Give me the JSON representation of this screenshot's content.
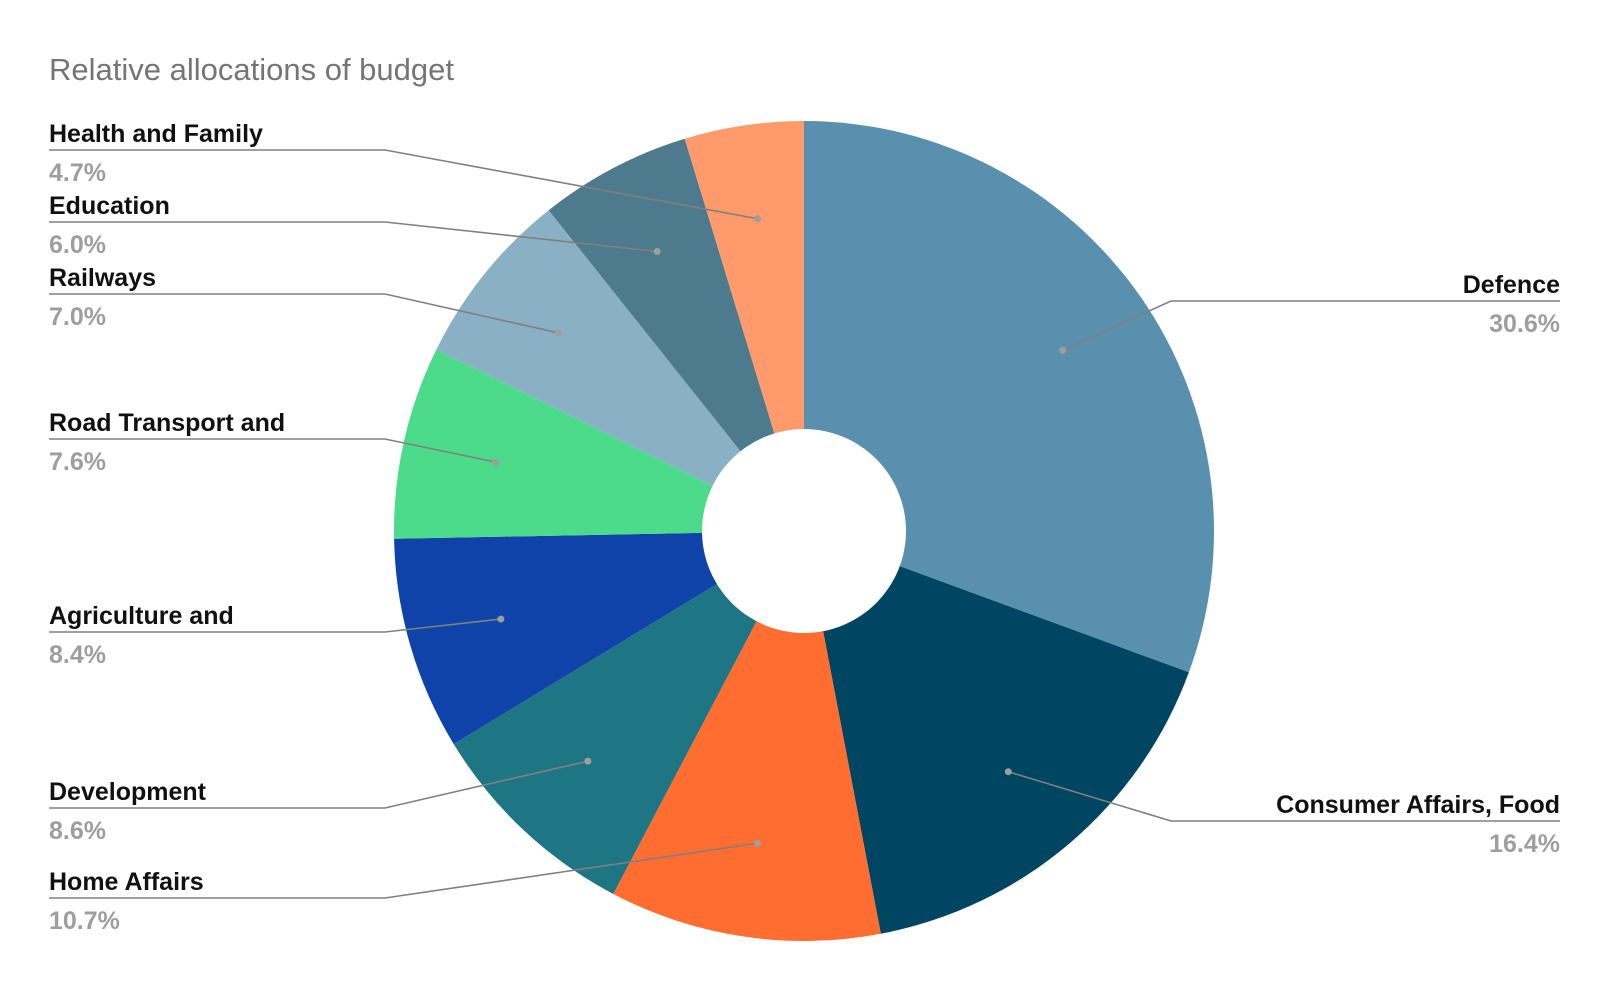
{
  "chart_data": {
    "type": "pie",
    "variant": "donut",
    "title": "Relative allocations of budget",
    "slices": [
      {
        "label": "Defence",
        "value": 30.6,
        "display": "30.6%",
        "color": "#5890ae"
      },
      {
        "label": "Consumer Affairs, Food",
        "value": 16.4,
        "display": "16.4%",
        "color": "#004561"
      },
      {
        "label": "Home Affairs",
        "value": 10.7,
        "display": "10.7%",
        "color": "#ff6d31"
      },
      {
        "label": "Development",
        "value": 8.6,
        "display": "8.6%",
        "color": "#1e7584"
      },
      {
        "label": "Agriculture and",
        "value": 8.4,
        "display": "8.4%",
        "color": "#0f43a9"
      },
      {
        "label": "Road Transport and",
        "value": 7.6,
        "display": "7.6%",
        "color": "#4cdb8b"
      },
      {
        "label": "Railways",
        "value": 7.0,
        "display": "7.0%",
        "color": "#8ab0c5"
      },
      {
        "label": "Education",
        "value": 6.0,
        "display": "6.0%",
        "color": "#4d7a8d"
      },
      {
        "label": "Health and Family",
        "value": 4.7,
        "display": "4.7%",
        "color": "#ff9a6c"
      }
    ],
    "start_angle": "12 o'clock",
    "direction": "clockwise",
    "legend": "none",
    "label_placement": "outside with leader lines"
  }
}
